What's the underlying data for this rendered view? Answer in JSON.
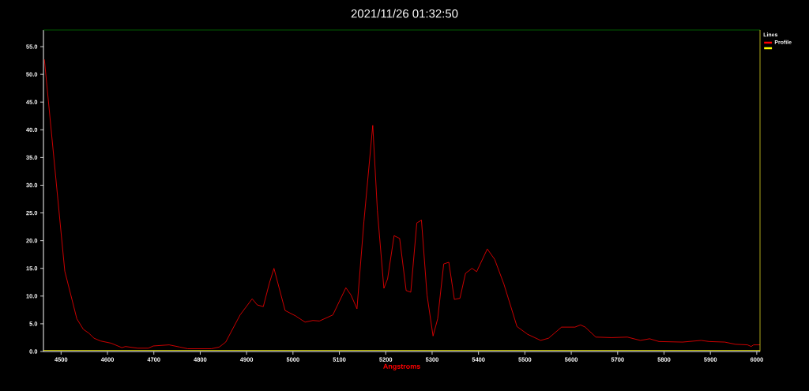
{
  "chart_data": {
    "type": "line",
    "title": "2021/11/26 01:32:50",
    "xlabel": "Angstroms",
    "legend_title": "Lines",
    "legend": "top right",
    "grid": false,
    "marker": "none",
    "xlim": [
      4462,
      6007
    ],
    "ylim": [
      0,
      58
    ],
    "xticks": [
      4500,
      4600,
      4700,
      4800,
      4900,
      5000,
      5100,
      5200,
      5300,
      5400,
      5500,
      5600,
      5700,
      5800,
      5900,
      6000
    ],
    "yticks": [
      {
        "value": 0,
        "label": "0.0"
      },
      {
        "value": 5,
        "label": "5.0"
      },
      {
        "value": 10,
        "label": "10.0"
      },
      {
        "value": 15,
        "label": "15.0"
      },
      {
        "value": 20,
        "label": "20.0"
      },
      {
        "value": 25,
        "label": "25.0"
      },
      {
        "value": 30,
        "label": "30.0"
      },
      {
        "value": 35,
        "label": "35.0"
      },
      {
        "value": 40,
        "label": "40.0"
      },
      {
        "value": 45,
        "label": "45.0"
      },
      {
        "value": 50,
        "label": "50.0"
      },
      {
        "value": 55,
        "label": "55.0"
      }
    ],
    "series": [
      {
        "name": "Profile",
        "color": "#ff0000",
        "x": [
          4464,
          4508,
          4534,
          4548,
          4560,
          4571,
          4585,
          4608,
          4631,
          4639,
          4665,
          4688,
          4699,
          4733,
          4756,
          4773,
          4824,
          4841,
          4855,
          4886,
          4912,
          4923,
          4936,
          4949,
          4959,
          4983,
          5006,
          5026,
          5043,
          5057,
          5086,
          5114,
          5125,
          5138,
          5153,
          5172,
          5182,
          5196,
          5204,
          5218,
          5230,
          5244,
          5254,
          5267,
          5277,
          5289,
          5302,
          5312,
          5325,
          5336,
          5348,
          5360,
          5372,
          5386,
          5396,
          5419,
          5435,
          5455,
          5483,
          5506,
          5534,
          5551,
          5579,
          5608,
          5620,
          5630,
          5653,
          5687,
          5721,
          5749,
          5769,
          5789,
          5840,
          5880,
          5897,
          5931,
          5954,
          5980,
          5988,
          5993,
          6007
        ],
        "values": [
          52.7,
          14.5,
          5.9,
          4.0,
          3.3,
          2.4,
          1.9,
          1.5,
          0.7,
          0.9,
          0.6,
          0.6,
          1.0,
          1.2,
          0.8,
          0.5,
          0.5,
          0.8,
          1.7,
          6.6,
          9.5,
          8.4,
          8.1,
          12.3,
          15.0,
          7.4,
          6.4,
          5.3,
          5.6,
          5.5,
          6.6,
          11.5,
          10.2,
          7.7,
          23.5,
          40.8,
          25.4,
          11.4,
          13.1,
          20.9,
          20.4,
          11.0,
          10.7,
          23.2,
          23.7,
          10.2,
          2.8,
          5.9,
          15.8,
          16.1,
          9.4,
          9.6,
          14.1,
          15.0,
          14.4,
          18.5,
          16.6,
          12.1,
          4.5,
          3.1,
          2.0,
          2.4,
          4.4,
          4.4,
          4.8,
          4.4,
          2.6,
          2.5,
          2.6,
          2.0,
          2.3,
          1.8,
          1.7,
          2.0,
          1.8,
          1.7,
          1.3,
          1.2,
          0.9,
          1.2,
          1.2
        ]
      },
      {
        "color": "#ffff00",
        "x": [
          4462,
          6007
        ],
        "values": [
          0.2,
          0.2
        ]
      }
    ]
  }
}
